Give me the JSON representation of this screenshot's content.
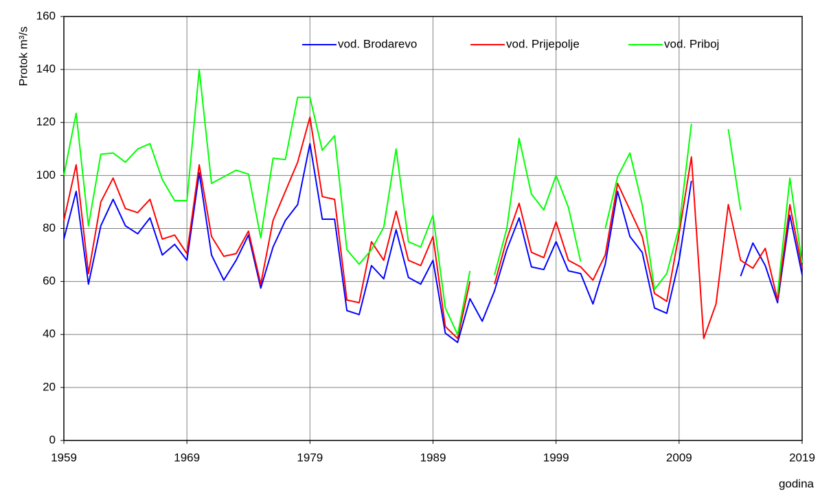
{
  "chart_data": {
    "type": "line",
    "ylabel": "Protok m³/s",
    "xlabel": "godina",
    "x": [
      1959,
      1960,
      1961,
      1962,
      1963,
      1964,
      1965,
      1966,
      1967,
      1968,
      1969,
      1970,
      1971,
      1972,
      1973,
      1974,
      1975,
      1976,
      1977,
      1978,
      1979,
      1980,
      1981,
      1982,
      1983,
      1984,
      1985,
      1986,
      1987,
      1988,
      1989,
      1990,
      1991,
      1992,
      1993,
      1994,
      1995,
      1996,
      1997,
      1998,
      1999,
      2000,
      2001,
      2002,
      2003,
      2004,
      2005,
      2006,
      2007,
      2008,
      2009,
      2010,
      2011,
      2012,
      2013,
      2014,
      2015,
      2016,
      2017,
      2018,
      2019
    ],
    "series": [
      {
        "name": "vod. Brodarevo",
        "color": "#0000ff",
        "values": [
          76,
          94,
          59,
          81,
          91,
          81,
          78,
          84,
          70,
          74,
          68,
          101,
          70,
          60.5,
          68,
          77.5,
          57.5,
          73,
          83,
          89,
          112,
          83.5,
          83.5,
          49,
          47.5,
          66,
          61,
          79.5,
          61.5,
          59,
          68,
          40.5,
          37,
          53.5,
          45,
          56.5,
          72,
          84,
          65.5,
          64.5,
          75,
          64,
          63,
          51.5,
          66.5,
          94,
          77,
          71,
          50,
          48,
          68,
          98,
          null,
          null,
          null,
          62,
          74.5,
          66,
          52,
          85,
          62.5
        ]
      },
      {
        "name": "vod. Prijepolje",
        "color": "#ff0000",
        "values": [
          83,
          104,
          63,
          90,
          99,
          87.5,
          86,
          91,
          76,
          77.5,
          70.5,
          104,
          77,
          69.5,
          70.5,
          79,
          59,
          83,
          94,
          105,
          122,
          92,
          91,
          53,
          52,
          75,
          68,
          86.5,
          68,
          66,
          77,
          43,
          38.5,
          60,
          null,
          59,
          76,
          89.5,
          71,
          69,
          82.5,
          68,
          65.5,
          60.5,
          70,
          97,
          87,
          77,
          55.5,
          52.5,
          78,
          107,
          38.5,
          51.5,
          89,
          68,
          65,
          72.5,
          53,
          89,
          65
        ]
      },
      {
        "name": "vod. Priboj",
        "color": "#00ff00",
        "values": [
          100,
          123.5,
          81,
          108,
          108.5,
          105,
          110,
          112,
          98.5,
          90.5,
          90.5,
          140,
          97,
          99.5,
          102,
          100.5,
          76.5,
          106.5,
          106,
          129.5,
          129.5,
          109.5,
          115,
          72,
          66.5,
          72,
          80.5,
          110,
          75,
          73,
          85,
          50,
          40,
          64,
          null,
          62.5,
          80,
          114,
          93,
          87,
          100,
          88,
          67.5,
          null,
          80,
          99.5,
          108.5,
          89,
          57,
          63,
          80.5,
          119.5,
          null,
          null,
          117.5,
          87,
          null,
          null,
          55,
          99,
          67
        ]
      }
    ],
    "xlim": [
      1959,
      2019
    ],
    "xticks": [
      1959,
      1969,
      1979,
      1989,
      1999,
      2009,
      2019
    ],
    "ylim": [
      0,
      160
    ],
    "yticks": [
      0,
      20,
      40,
      60,
      80,
      100,
      120,
      140,
      160
    ],
    "grid": true,
    "legend": "top"
  }
}
